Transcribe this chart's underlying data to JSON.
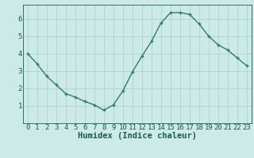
{
  "x": [
    0,
    1,
    2,
    3,
    4,
    5,
    6,
    7,
    8,
    9,
    10,
    11,
    12,
    13,
    14,
    15,
    16,
    17,
    18,
    19,
    20,
    21,
    22,
    23
  ],
  "y": [
    4.0,
    3.4,
    2.7,
    2.2,
    1.7,
    1.5,
    1.25,
    1.05,
    0.75,
    1.05,
    1.85,
    2.95,
    3.85,
    4.7,
    5.75,
    6.35,
    6.35,
    6.25,
    5.7,
    5.0,
    4.5,
    4.2,
    3.75,
    3.3
  ],
  "line_color": "#2e7d6e",
  "marker": "P",
  "markersize": 2.5,
  "linewidth": 1.0,
  "bg_color": "#cceae6",
  "grid_color": "#aaccc8",
  "xlabel": "Humidex (Indice chaleur)",
  "xlabel_color": "#1a5a50",
  "tick_color": "#1a5a50",
  "xlim": [
    -0.5,
    23.5
  ],
  "ylim": [
    0,
    6.8
  ],
  "xticks": [
    0,
    1,
    2,
    3,
    4,
    5,
    6,
    7,
    8,
    9,
    10,
    11,
    12,
    13,
    14,
    15,
    16,
    17,
    18,
    19,
    20,
    21,
    22,
    23
  ],
  "yticks": [
    1,
    2,
    3,
    4,
    5,
    6
  ],
  "xlabel_fontsize": 7.5,
  "tick_fontsize": 6.5
}
